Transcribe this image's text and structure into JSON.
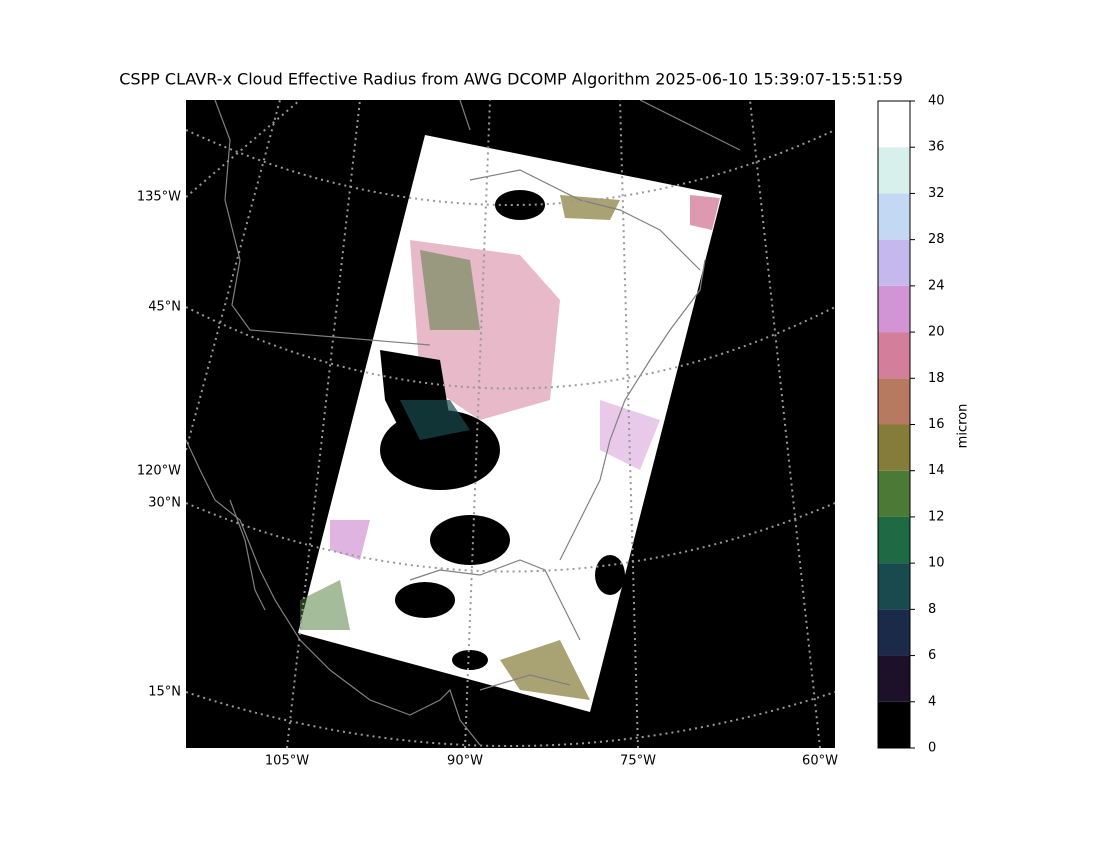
{
  "title": "CSPP CLAVR-x Cloud Effective Radius from AWG DCOMP Algorithm 2025-06-10 15:39:07-15:51:59",
  "map": {
    "lon_labels": [
      "105°W",
      "90°W",
      "75°W",
      "60°W"
    ],
    "lat_labels": [
      "135°W",
      "45°N",
      "120°W",
      "30°N",
      "15°N"
    ]
  },
  "colorbar": {
    "label": "micron",
    "ticks": [
      0,
      4,
      6,
      8,
      10,
      12,
      14,
      16,
      18,
      20,
      24,
      28,
      32,
      36,
      40
    ],
    "colors": [
      "#000000",
      "#1d1029",
      "#1c2a4a",
      "#184a4e",
      "#1d6a45",
      "#4a7a35",
      "#847c38",
      "#b77a60",
      "#d37f9c",
      "#d294d4",
      "#c5b8ef",
      "#c3d8f2",
      "#d8f0ec",
      "#ffffff"
    ]
  }
}
